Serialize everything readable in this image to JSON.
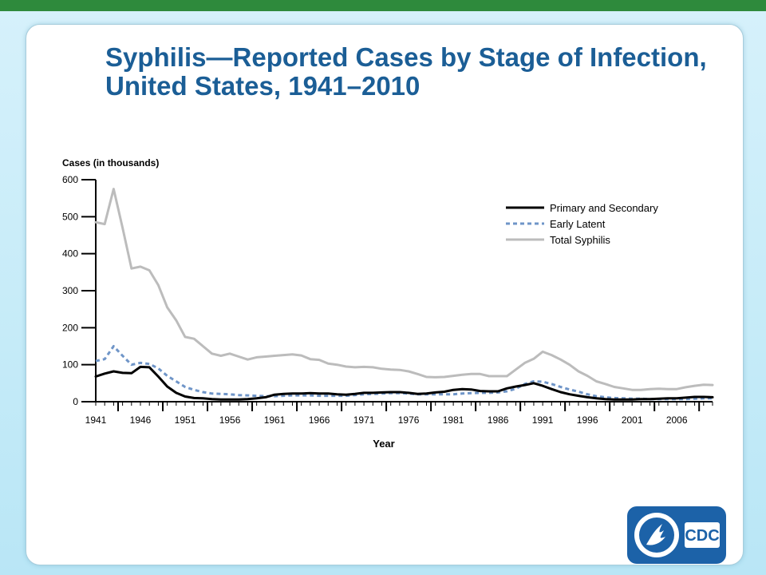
{
  "title": "Syphilis—Reported Cases by Stage of Infection, United States, 1941–2010",
  "logo": {
    "text": "CDC",
    "icon": "hhs-eagle-icon"
  },
  "colors": {
    "title": "#1b5e96",
    "primary_secondary": "#000000",
    "early_latent": "#6f95c8",
    "total": "#bcbcbc",
    "top_bar": "#2e8a3c",
    "logo_bg": "#1c62a8"
  },
  "chart_data": {
    "type": "line",
    "ylabel": "Cases (in thousands)",
    "xlabel": "Year",
    "ylim": [
      0,
      600
    ],
    "xlim": [
      1941,
      2010
    ],
    "yticks": [
      0,
      100,
      200,
      300,
      400,
      500,
      600
    ],
    "xtick_labels": [
      "1941",
      "1946",
      "1951",
      "1956",
      "1961",
      "1966",
      "1971",
      "1976",
      "1981",
      "1986",
      "1991",
      "1996",
      "2001",
      "2006"
    ],
    "legend_position": "top-right",
    "x": [
      1941,
      1942,
      1943,
      1944,
      1945,
      1946,
      1947,
      1948,
      1949,
      1950,
      1951,
      1952,
      1953,
      1954,
      1955,
      1956,
      1957,
      1958,
      1959,
      1960,
      1961,
      1962,
      1963,
      1964,
      1965,
      1966,
      1967,
      1968,
      1969,
      1970,
      1971,
      1972,
      1973,
      1974,
      1975,
      1976,
      1977,
      1978,
      1979,
      1980,
      1981,
      1982,
      1983,
      1984,
      1985,
      1986,
      1987,
      1988,
      1989,
      1990,
      1991,
      1992,
      1993,
      1994,
      1995,
      1996,
      1997,
      1998,
      1999,
      2000,
      2001,
      2002,
      2003,
      2004,
      2005,
      2006,
      2007,
      2008,
      2009,
      2010
    ],
    "series": [
      {
        "name": "Primary and Secondary",
        "style": "solid",
        "values": [
          68,
          76,
          82,
          78,
          77,
          94,
          93,
          68,
          41,
          24,
          14,
          10,
          9,
          7,
          6,
          6,
          6,
          7,
          9,
          12,
          19,
          21,
          22,
          22,
          23,
          22,
          22,
          20,
          19,
          21,
          24,
          24,
          25,
          26,
          26,
          24,
          21,
          22,
          25,
          27,
          32,
          34,
          33,
          29,
          28,
          28,
          36,
          41,
          45,
          50,
          43,
          34,
          26,
          20,
          16,
          12,
          9,
          7,
          6,
          6,
          6,
          7,
          7,
          8,
          9,
          9,
          11,
          13,
          13,
          12
        ]
      },
      {
        "name": "Early Latent",
        "style": "dashed",
        "values": [
          110,
          115,
          150,
          124,
          100,
          105,
          102,
          90,
          70,
          55,
          40,
          32,
          26,
          22,
          21,
          20,
          18,
          17,
          16,
          15,
          15,
          16,
          17,
          17,
          17,
          16,
          16,
          16,
          16,
          18,
          20,
          21,
          22,
          23,
          23,
          22,
          20,
          20,
          20,
          20,
          20,
          22,
          23,
          24,
          24,
          25,
          28,
          35,
          48,
          55,
          54,
          48,
          40,
          33,
          27,
          20,
          15,
          12,
          10,
          9,
          8,
          8,
          7,
          7,
          7,
          7,
          7,
          8,
          9,
          9
        ]
      },
      {
        "name": "Total Syphilis",
        "style": "solid",
        "values": [
          485,
          480,
          575,
          470,
          360,
          365,
          355,
          315,
          255,
          220,
          175,
          170,
          150,
          130,
          124,
          130,
          122,
          114,
          120,
          122,
          124,
          126,
          128,
          125,
          115,
          113,
          103,
          100,
          95,
          93,
          94,
          93,
          89,
          87,
          86,
          82,
          75,
          67,
          66,
          67,
          70,
          73,
          75,
          75,
          69,
          69,
          69,
          87,
          105,
          116,
          135,
          126,
          114,
          100,
          82,
          70,
          55,
          48,
          40,
          36,
          32,
          32,
          34,
          35,
          34,
          34,
          39,
          43,
          46,
          45
        ]
      }
    ]
  }
}
